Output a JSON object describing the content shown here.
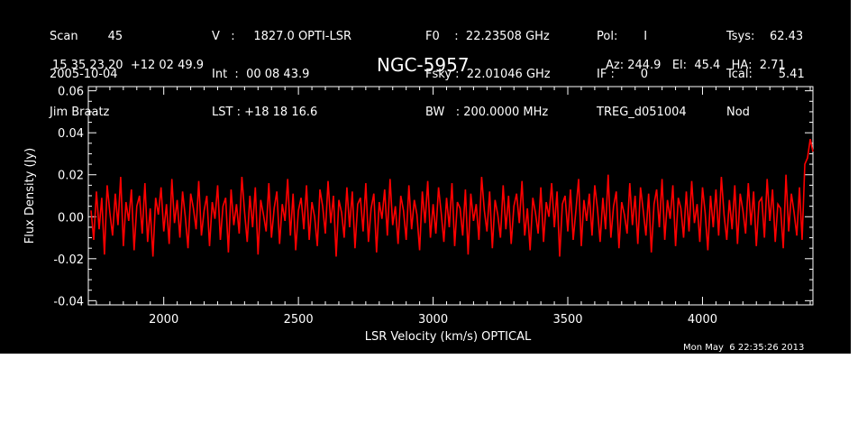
{
  "header": {
    "col1": [
      "Scan        45",
      "2005-10-04",
      "Jim Braatz"
    ],
    "col2": [
      "V   :     1827.0 OPTI-LSR",
      "Int  :  00 08 43.9",
      "LST : +18 18 16.6"
    ],
    "col3": [
      "F0    :  22.23508 GHz",
      "Fsky :  22.01046 GHz",
      "BW   : 200.0000 MHz"
    ],
    "col4": [
      "Pol:       I",
      "IF :       0",
      "TREG_d051004"
    ],
    "col5": [
      "Tsys:    62.43",
      "Tcal:       5.41",
      "Nod"
    ],
    "coords": "15 35 23.20  +12 02 49.9",
    "source": "NGC-5957",
    "pointing": "Az: 244.9   El:  45.4   HA:  2.71"
  },
  "timestamp": "Mon May  6 22:35:26 2013",
  "colors": {
    "background": "#000000",
    "axes": "#ffffff",
    "trace": "#ff0000"
  },
  "chart_data": {
    "type": "line",
    "xlabel": "LSR Velocity (km/s) OPTICAL",
    "ylabel": "Flux Density (Jy)",
    "xlim": [
      1720,
      4410
    ],
    "ylim": [
      -0.042,
      0.062
    ],
    "xticks": [
      2000,
      2500,
      3000,
      3500,
      4000
    ],
    "xtick_labels": [
      "2000",
      "2500",
      "3000",
      "3500",
      "4000"
    ],
    "yticks": [
      -0.04,
      -0.02,
      0.0,
      0.02,
      0.04,
      0.06
    ],
    "ytick_labels": [
      "-0.04",
      "-0.02",
      "0.00",
      "0.02",
      "0.04",
      "0.06"
    ],
    "grid": false,
    "series": [
      {
        "x_start": 1730,
        "x_step": 10,
        "y": [
          0.003,
          -0.011,
          0.012,
          -0.006,
          0.009,
          -0.018,
          0.015,
          0.002,
          -0.009,
          0.011,
          -0.004,
          0.019,
          -0.014,
          0.007,
          -0.002,
          0.013,
          -0.016,
          0.005,
          0.01,
          -0.008,
          0.016,
          -0.012,
          0.004,
          -0.019,
          0.009,
          0.001,
          0.014,
          -0.007,
          0.006,
          -0.013,
          0.018,
          -0.003,
          0.008,
          -0.01,
          0.012,
          0.0,
          -0.015,
          0.011,
          0.004,
          -0.006,
          0.017,
          -0.009,
          0.003,
          0.01,
          -0.014,
          0.007,
          -0.001,
          0.015,
          -0.011,
          0.005,
          0.009,
          -0.017,
          0.013,
          -0.004,
          0.006,
          -0.008,
          0.019,
          0.002,
          -0.012,
          0.01,
          -0.005,
          0.014,
          -0.018,
          0.008,
          0.001,
          -0.007,
          0.016,
          -0.01,
          0.004,
          0.012,
          -0.013,
          0.006,
          -0.002,
          0.018,
          -0.009,
          0.011,
          -0.016,
          0.003,
          0.009,
          -0.006,
          0.015,
          -0.011,
          0.007,
          0.0,
          -0.014,
          0.013,
          0.005,
          -0.008,
          0.017,
          -0.003,
          0.01,
          -0.019,
          0.008,
          0.002,
          -0.01,
          0.014,
          -0.005,
          0.012,
          -0.015,
          0.006,
          0.009,
          -0.007,
          0.016,
          -0.012,
          0.004,
          0.011,
          -0.017,
          0.007,
          -0.001,
          0.013,
          -0.009,
          0.018,
          -0.004,
          0.005,
          -0.013,
          0.01,
          0.003,
          -0.011,
          0.015,
          -0.006,
          0.008,
          0.001,
          -0.016,
          0.012,
          -0.003,
          0.017,
          -0.01,
          0.006,
          -0.008,
          0.014,
          0.002,
          -0.012,
          0.009,
          -0.005,
          0.016,
          -0.014,
          0.007,
          0.004,
          -0.009,
          0.013,
          -0.018,
          0.011,
          -0.002,
          0.006,
          -0.011,
          0.019,
          0.003,
          -0.007,
          0.012,
          -0.015,
          0.008,
          0.001,
          -0.01,
          0.015,
          -0.006,
          0.01,
          -0.013,
          0.005,
          0.011,
          -0.003,
          0.017,
          -0.009,
          0.004,
          -0.016,
          0.009,
          0.002,
          -0.008,
          0.014,
          -0.012,
          0.007,
          0.0,
          0.016,
          -0.005,
          0.012,
          -0.019,
          0.006,
          0.01,
          -0.007,
          0.013,
          -0.011,
          0.003,
          0.018,
          -0.014,
          0.008,
          -0.002,
          0.011,
          -0.009,
          0.015,
          0.004,
          -0.012,
          0.009,
          -0.006,
          0.02,
          -0.01,
          0.005,
          0.012,
          -0.015,
          0.007,
          0.001,
          -0.008,
          0.016,
          -0.004,
          0.01,
          -0.013,
          0.014,
          0.003,
          -0.009,
          0.011,
          -0.017,
          0.006,
          0.013,
          -0.005,
          0.018,
          -0.011,
          0.008,
          -0.001,
          0.015,
          -0.014,
          0.009,
          0.004,
          -0.01,
          0.012,
          -0.007,
          0.017,
          -0.003,
          0.006,
          -0.012,
          0.014,
          0.002,
          -0.016,
          0.01,
          -0.005,
          0.013,
          -0.009,
          0.019,
          0.001,
          -0.011,
          0.008,
          -0.006,
          0.015,
          -0.013,
          0.011,
          0.003,
          -0.008,
          0.016,
          -0.004,
          0.012,
          -0.014,
          0.007,
          0.009,
          -0.01,
          0.018,
          -0.002,
          0.013,
          -0.012,
          0.006,
          0.004,
          -0.015,
          0.02,
          -0.007,
          0.011,
          0.002,
          -0.009,
          0.014,
          -0.011,
          0.025,
          0.028,
          0.037,
          0.031
        ]
      }
    ]
  }
}
